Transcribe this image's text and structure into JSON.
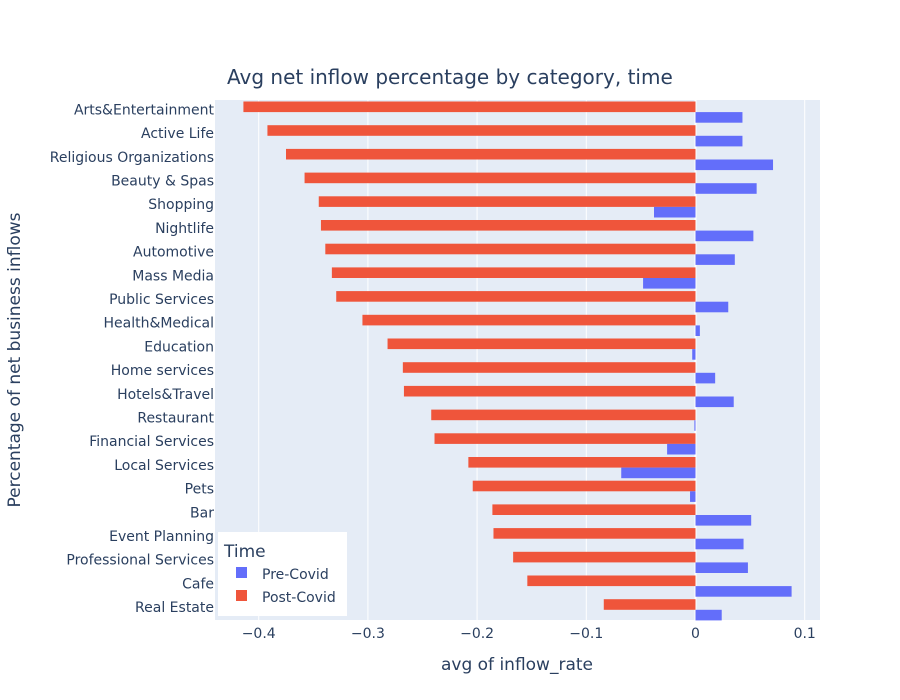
{
  "chart_data": {
    "type": "bar",
    "orientation": "horizontal",
    "title": "Avg net inflow percentage by category, time",
    "xlabel": "avg of inflow_rate",
    "ylabel": "Percentage of net business inflows",
    "xlim": [
      -0.44,
      0.117
    ],
    "x_ticks": [
      -0.4,
      -0.3,
      -0.2,
      -0.1,
      0,
      0.1
    ],
    "x_tick_labels": [
      "−0.4",
      "−0.3",
      "−0.2",
      "−0.1",
      "0",
      "0.1"
    ],
    "categories": [
      "Arts&Entertainment",
      "Active Life",
      "Religious Organizations",
      "Beauty & Spas",
      "Shopping",
      "Nightlife",
      "Automotive",
      "Mass Media",
      "Public Services",
      "Health&Medical",
      "Education",
      "Home services",
      "Hotels&Travel",
      "Restaurant",
      "Financial Services",
      "Local Services",
      "Pets",
      "Bar",
      "Event Planning",
      "Professional Services",
      "Cafe",
      "Real Estate"
    ],
    "series": [
      {
        "name": "Pre-Covid",
        "color": "#636efa",
        "values": [
          0.043,
          0.043,
          0.071,
          0.056,
          -0.038,
          0.053,
          0.036,
          -0.048,
          0.03,
          0.004,
          -0.003,
          0.018,
          0.035,
          -0.001,
          -0.026,
          -0.068,
          -0.005,
          0.051,
          0.044,
          0.048,
          0.088,
          0.024
        ]
      },
      {
        "name": "Post-Covid",
        "color": "#ef553b",
        "values": [
          -0.414,
          -0.392,
          -0.375,
          -0.358,
          -0.345,
          -0.343,
          -0.339,
          -0.333,
          -0.329,
          -0.305,
          -0.282,
          -0.268,
          -0.267,
          -0.242,
          -0.239,
          -0.208,
          -0.204,
          -0.186,
          -0.185,
          -0.167,
          -0.154,
          -0.084
        ]
      }
    ],
    "legend": {
      "title": "Time",
      "position": "bottom-left"
    },
    "grid": true,
    "colors": {
      "plot_bg": "#e5ecf6",
      "grid": "#ffffff",
      "text": "#2a3f5f"
    }
  }
}
